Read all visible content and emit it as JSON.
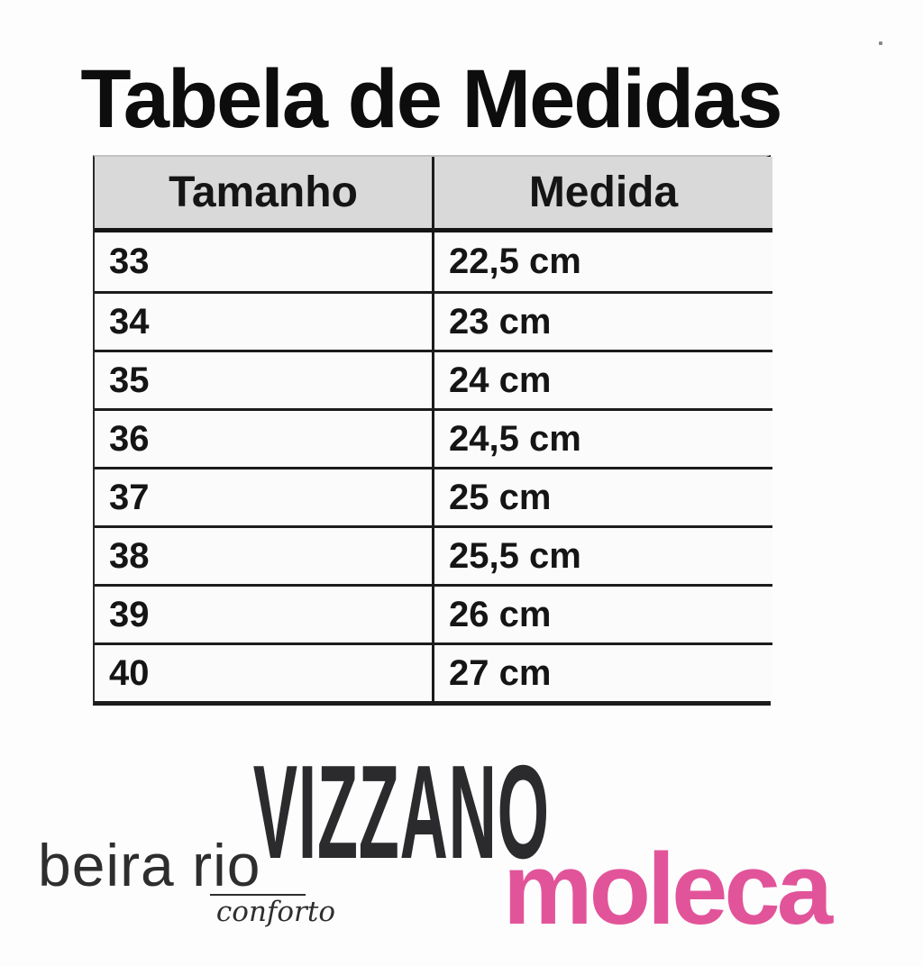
{
  "title": "Tabela de Medidas",
  "chart_data": {
    "type": "table",
    "title": "Tabela de Medidas",
    "columns": [
      "Tamanho",
      "Medida"
    ],
    "rows": [
      [
        "33",
        "22,5 cm"
      ],
      [
        "34",
        "23 cm"
      ],
      [
        "35",
        "24 cm"
      ],
      [
        "36",
        "24,5 cm"
      ],
      [
        "37",
        "25 cm"
      ],
      [
        "38",
        "25,5 cm"
      ],
      [
        "39",
        "26 cm"
      ],
      [
        "40",
        "27 cm"
      ]
    ]
  },
  "brands": {
    "vizzano": "VIZZANO",
    "beira_rio": "beira rio",
    "beira_rio_sub": "conforto",
    "moleca": "moleca"
  },
  "colors": {
    "moleca_pink": "#e2549a",
    "header_bg": "#d9d9d9",
    "table_border": "#1c1c1c",
    "text": "#141414"
  }
}
